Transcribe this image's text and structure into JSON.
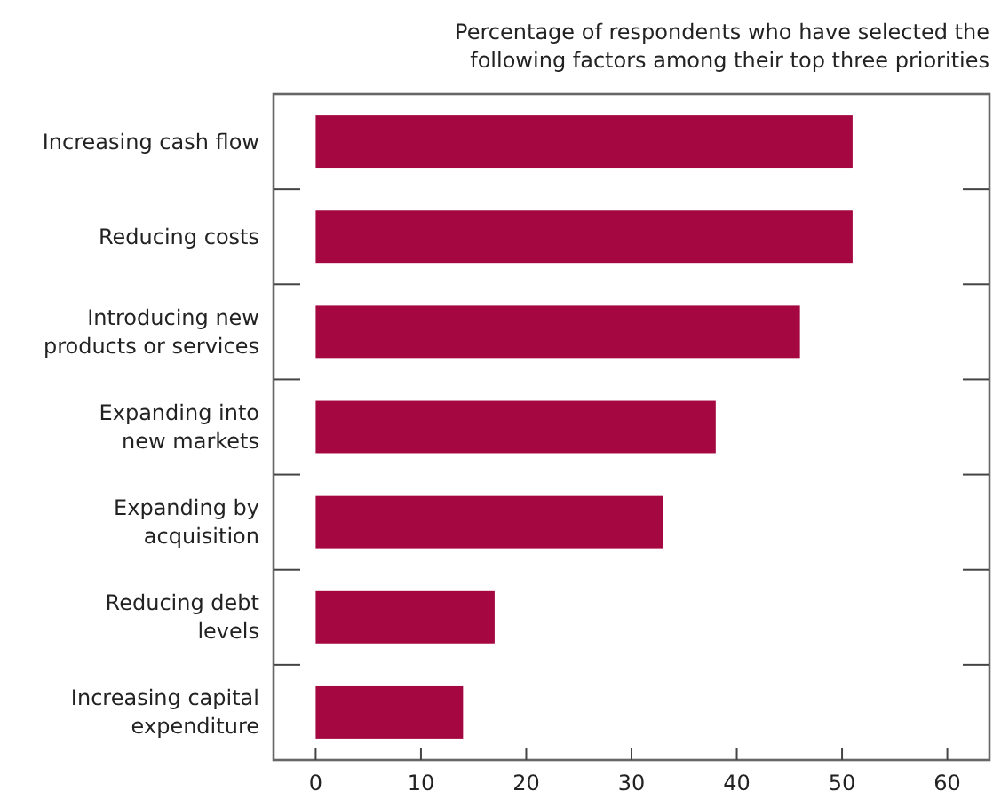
{
  "chart_data": {
    "type": "bar",
    "orientation": "horizontal",
    "title": "Percentage of respondents who have selected the\nfollowing factors among their top three priorities",
    "categories": [
      "Increasing cash flow",
      "Reducing costs",
      "Introducing new\nproducts or services",
      "Expanding into\nnew markets",
      "Expanding by\nacquisition",
      "Reducing debt\nlevels",
      "Increasing capital\nexpenditure"
    ],
    "values": [
      51,
      51,
      46,
      38,
      33,
      17,
      14
    ],
    "color": "#a50841",
    "xlim": [
      -4,
      64
    ],
    "xticks": [
      0,
      10,
      20,
      30,
      40,
      50,
      60
    ],
    "grid": false
  }
}
